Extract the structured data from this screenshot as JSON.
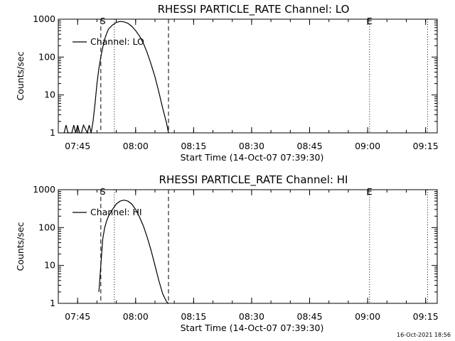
{
  "chart_data": [
    {
      "type": "line",
      "title": "RHESSI PARTICLE_RATE Channel: LO",
      "xlabel": "Start Time (14-Oct-07 07:39:30)",
      "ylabel": "Counts/sec",
      "yscale": "log",
      "ylim": [
        1,
        1000
      ],
      "xlim": [
        "07:40",
        "09:18"
      ],
      "xticks": [
        "07:45",
        "08:00",
        "08:15",
        "08:30",
        "08:45",
        "09:00",
        "09:15"
      ],
      "yticks": [
        "1",
        "10",
        "100",
        "1000"
      ],
      "legend": "top-left",
      "series": [
        {
          "name": "Channel: LO",
          "x": [
            "07:41:30",
            "07:42:00",
            "07:42:30",
            "07:43:30",
            "07:44:00",
            "07:44:30",
            "07:45:00",
            "07:45:30",
            "07:46:00",
            "07:46:30",
            "07:47:30",
            "07:48:00",
            "07:48:30",
            "07:49:00",
            "07:49:30",
            "07:50:00",
            "07:50:30",
            "07:51:00",
            "07:51:30",
            "07:52:00",
            "07:52:30",
            "07:53:00",
            "07:54:00",
            "07:55:00",
            "07:56:00",
            "07:57:00",
            "07:58:00",
            "07:59:00",
            "08:00:00",
            "08:01:00",
            "08:02:00",
            "08:03:00",
            "08:04:00",
            "08:05:00",
            "08:06:00",
            "08:07:00",
            "08:08:00",
            "08:08:30"
          ],
          "y": [
            1,
            1.6,
            1,
            1,
            1.6,
            1,
            1.6,
            1,
            1,
            1.6,
            1,
            1.6,
            1,
            2,
            6,
            20,
            50,
            100,
            180,
            300,
            420,
            550,
            700,
            820,
            870,
            850,
            780,
            650,
            500,
            360,
            230,
            130,
            65,
            30,
            12,
            4.5,
            1.8,
            1
          ]
        }
      ],
      "annotations": [
        {
          "text": "S",
          "x": "07:51:30"
        },
        {
          "text": "E",
          "x": "09:00:30"
        }
      ],
      "vlines_dashed": [
        "07:51:00",
        "08:08:30"
      ],
      "vlines_dotted": [
        "07:54:30",
        "09:00:30",
        "09:15:30"
      ]
    },
    {
      "type": "line",
      "title": "RHESSI PARTICLE_RATE Channel: HI",
      "xlabel": "Start Time (14-Oct-07 07:39:30)",
      "ylabel": "Counts/sec",
      "yscale": "log",
      "ylim": [
        1,
        1000
      ],
      "xlim": [
        "07:40",
        "09:18"
      ],
      "xticks": [
        "07:45",
        "08:00",
        "08:15",
        "08:30",
        "08:45",
        "09:00",
        "09:15"
      ],
      "yticks": [
        "1",
        "10",
        "100",
        "1000"
      ],
      "legend": "top-left",
      "series": [
        {
          "name": "Channel: HI",
          "x": [
            "07:50:30",
            "07:51:00",
            "07:51:30",
            "07:52:00",
            "07:52:30",
            "07:53:00",
            "07:54:00",
            "07:55:00",
            "07:56:00",
            "07:57:00",
            "07:58:00",
            "07:59:00",
            "08:00:00",
            "08:01:00",
            "08:02:00",
            "08:03:00",
            "08:04:00",
            "08:05:00",
            "08:06:00",
            "08:07:00",
            "08:08:00",
            "08:08:30"
          ],
          "y": [
            2,
            10,
            50,
            100,
            150,
            200,
            300,
            420,
            500,
            530,
            500,
            420,
            300,
            190,
            110,
            55,
            25,
            10,
            4,
            1.8,
            1.1,
            1
          ]
        }
      ],
      "annotations": [
        {
          "text": "S",
          "x": "07:51:30"
        },
        {
          "text": "E",
          "x": "09:00:30"
        }
      ],
      "vlines_dashed": [
        "07:51:00",
        "08:08:30"
      ],
      "vlines_dotted": [
        "07:54:30",
        "09:00:30",
        "09:15:30"
      ]
    }
  ],
  "footer": {
    "timestamp": "16-Oct-2021 18:56"
  }
}
